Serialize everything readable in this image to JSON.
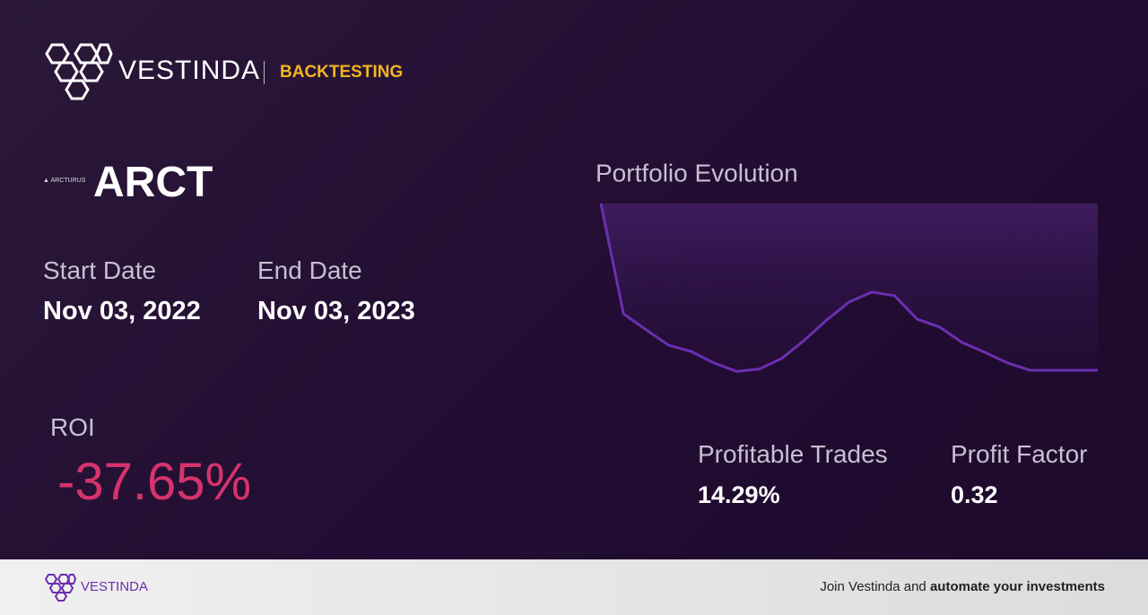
{
  "header": {
    "brand": "VESTINDA",
    "section": "BACKTESTING"
  },
  "asset": {
    "logo_text": "ARCTURUS",
    "ticker": "ARCT"
  },
  "dates": {
    "start_label": "Start Date",
    "start_value": "Nov 03, 2022",
    "end_label": "End Date",
    "end_value": "Nov 03, 2023"
  },
  "roi": {
    "label": "ROI",
    "value": "-37.65%"
  },
  "stats": {
    "profitable_label": "Profitable Trades",
    "profitable_value": "14.29%",
    "factor_label": "Profit Factor",
    "factor_value": "0.32"
  },
  "chart_data": {
    "type": "line",
    "title": "Portfolio Evolution",
    "color": "#6a2fb0",
    "values": [
      100,
      75.1,
      71.5,
      68.0,
      66.6,
      64.0,
      62.1,
      62.6,
      65.0,
      69.1,
      73.7,
      77.8,
      80.0,
      79.2,
      73.9,
      72.1,
      68.6,
      66.4,
      64.0,
      62.35,
      62.35,
      62.35,
      62.35
    ],
    "ylim": [
      62.35,
      100
    ]
  },
  "footer": {
    "brand": "VESTINDA",
    "text": "Join Vestinda and",
    "bold": "automate your investments"
  }
}
